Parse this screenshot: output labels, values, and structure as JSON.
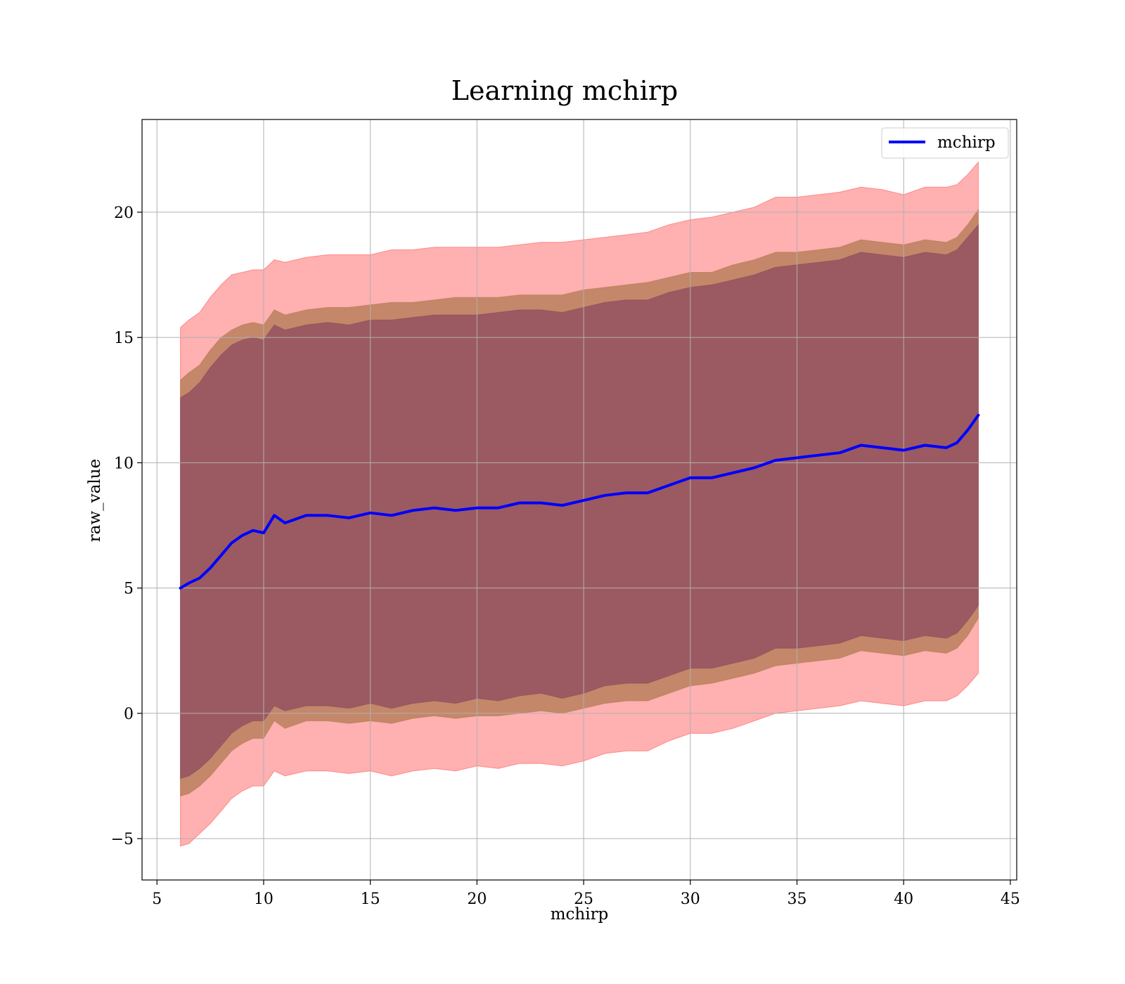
{
  "chart_data": {
    "type": "line",
    "title": "Learning mchirp",
    "xlabel": "mchirp",
    "ylabel": "raw_value",
    "xlim": [
      4.3,
      45.3
    ],
    "ylim": [
      -6.65,
      23.7
    ],
    "xticks": [
      5,
      10,
      15,
      20,
      25,
      30,
      35,
      40,
      45
    ],
    "xtick_labels": [
      "5",
      "10",
      "15",
      "20",
      "25",
      "30",
      "35",
      "40",
      "45"
    ],
    "yticks": [
      -5,
      0,
      5,
      10,
      15,
      20
    ],
    "ytick_labels": [
      "−5",
      "0",
      "5",
      "10",
      "15",
      "20"
    ],
    "grid": true,
    "legend_position": "top-right",
    "colors": {
      "line": "#0000ff",
      "band_outer": "#ff5a5a",
      "band_middle": "#b07a52",
      "band_inner": "#8a4a5e",
      "grid": "#b0b0b0",
      "axes": "#000000"
    },
    "series": [
      {
        "name": "mchirp",
        "x": [
          6.1,
          6.5,
          7.0,
          7.5,
          8.0,
          8.5,
          9.0,
          9.5,
          10.0,
          10.5,
          11.0,
          12.0,
          13.0,
          14.0,
          15.0,
          16.0,
          17.0,
          18.0,
          19.0,
          20.0,
          21.0,
          22.0,
          23.0,
          24.0,
          25.0,
          26.0,
          27.0,
          28.0,
          29.0,
          30.0,
          31.0,
          32.0,
          33.0,
          34.0,
          35.0,
          36.0,
          37.0,
          38.0,
          39.0,
          40.0,
          41.0,
          42.0,
          42.5,
          43.0,
          43.5
        ],
        "y": [
          5.0,
          5.2,
          5.4,
          5.8,
          6.3,
          6.8,
          7.1,
          7.3,
          7.2,
          7.9,
          7.6,
          7.9,
          7.9,
          7.8,
          8.0,
          7.9,
          8.1,
          8.2,
          8.1,
          8.2,
          8.2,
          8.4,
          8.4,
          8.3,
          8.5,
          8.7,
          8.8,
          8.8,
          9.1,
          9.4,
          9.4,
          9.6,
          9.8,
          10.1,
          10.2,
          10.3,
          10.4,
          10.7,
          10.6,
          10.5,
          10.7,
          10.6,
          10.8,
          11.3,
          11.9
        ]
      }
    ],
    "bands": [
      {
        "upper": [
          15.4,
          15.7,
          16.0,
          16.6,
          17.1,
          17.5,
          17.6,
          17.7,
          17.7,
          18.1,
          18.0,
          18.2,
          18.3,
          18.3,
          18.3,
          18.5,
          18.5,
          18.6,
          18.6,
          18.6,
          18.6,
          18.7,
          18.8,
          18.8,
          18.9,
          19.0,
          19.1,
          19.2,
          19.5,
          19.7,
          19.8,
          20.0,
          20.2,
          20.6,
          20.6,
          20.7,
          20.8,
          21.0,
          20.9,
          20.7,
          21.0,
          21.0,
          21.1,
          21.5,
          22.0
        ],
        "lower": [
          -5.3,
          -5.2,
          -4.8,
          -4.4,
          -3.9,
          -3.4,
          -3.1,
          -2.9,
          -2.9,
          -2.3,
          -2.5,
          -2.3,
          -2.3,
          -2.4,
          -2.3,
          -2.5,
          -2.3,
          -2.2,
          -2.3,
          -2.1,
          -2.2,
          -2.0,
          -2.0,
          -2.1,
          -1.9,
          -1.6,
          -1.5,
          -1.5,
          -1.1,
          -0.8,
          -0.8,
          -0.6,
          -0.3,
          -0.0,
          0.1,
          0.2,
          0.3,
          0.5,
          0.4,
          0.3,
          0.5,
          0.5,
          0.7,
          1.1,
          1.6
        ]
      },
      {
        "upper": [
          13.3,
          13.6,
          13.9,
          14.5,
          15.0,
          15.3,
          15.5,
          15.6,
          15.5,
          16.1,
          15.9,
          16.1,
          16.2,
          16.2,
          16.3,
          16.4,
          16.4,
          16.5,
          16.6,
          16.6,
          16.6,
          16.7,
          16.7,
          16.7,
          16.9,
          17.0,
          17.1,
          17.2,
          17.4,
          17.6,
          17.6,
          17.9,
          18.1,
          18.4,
          18.4,
          18.5,
          18.6,
          18.9,
          18.8,
          18.7,
          18.9,
          18.8,
          19.0,
          19.5,
          20.1
        ],
        "lower": [
          -3.3,
          -3.2,
          -2.9,
          -2.5,
          -2.0,
          -1.5,
          -1.2,
          -1.0,
          -1.0,
          -0.3,
          -0.6,
          -0.3,
          -0.3,
          -0.4,
          -0.3,
          -0.4,
          -0.2,
          -0.1,
          -0.2,
          -0.1,
          -0.1,
          0.0,
          0.1,
          0.0,
          0.2,
          0.4,
          0.5,
          0.5,
          0.8,
          1.1,
          1.2,
          1.4,
          1.6,
          1.9,
          2.0,
          2.1,
          2.2,
          2.5,
          2.4,
          2.3,
          2.5,
          2.4,
          2.6,
          3.1,
          3.8
        ]
      },
      {
        "upper": [
          12.6,
          12.8,
          13.2,
          13.8,
          14.3,
          14.7,
          14.9,
          15.0,
          14.9,
          15.5,
          15.3,
          15.5,
          15.6,
          15.5,
          15.7,
          15.7,
          15.8,
          15.9,
          15.9,
          15.9,
          16.0,
          16.1,
          16.1,
          16.0,
          16.2,
          16.4,
          16.5,
          16.5,
          16.8,
          17.0,
          17.1,
          17.3,
          17.5,
          17.8,
          17.9,
          18.0,
          18.1,
          18.4,
          18.3,
          18.2,
          18.4,
          18.3,
          18.5,
          19.0,
          19.5
        ],
        "lower": [
          -2.6,
          -2.5,
          -2.2,
          -1.8,
          -1.3,
          -0.8,
          -0.5,
          -0.3,
          -0.3,
          0.3,
          0.1,
          0.3,
          0.3,
          0.2,
          0.4,
          0.2,
          0.4,
          0.5,
          0.4,
          0.6,
          0.5,
          0.7,
          0.8,
          0.6,
          0.8,
          1.1,
          1.2,
          1.2,
          1.5,
          1.8,
          1.8,
          2.0,
          2.2,
          2.6,
          2.6,
          2.7,
          2.8,
          3.1,
          3.0,
          2.9,
          3.1,
          3.0,
          3.2,
          3.7,
          4.3
        ]
      }
    ]
  }
}
